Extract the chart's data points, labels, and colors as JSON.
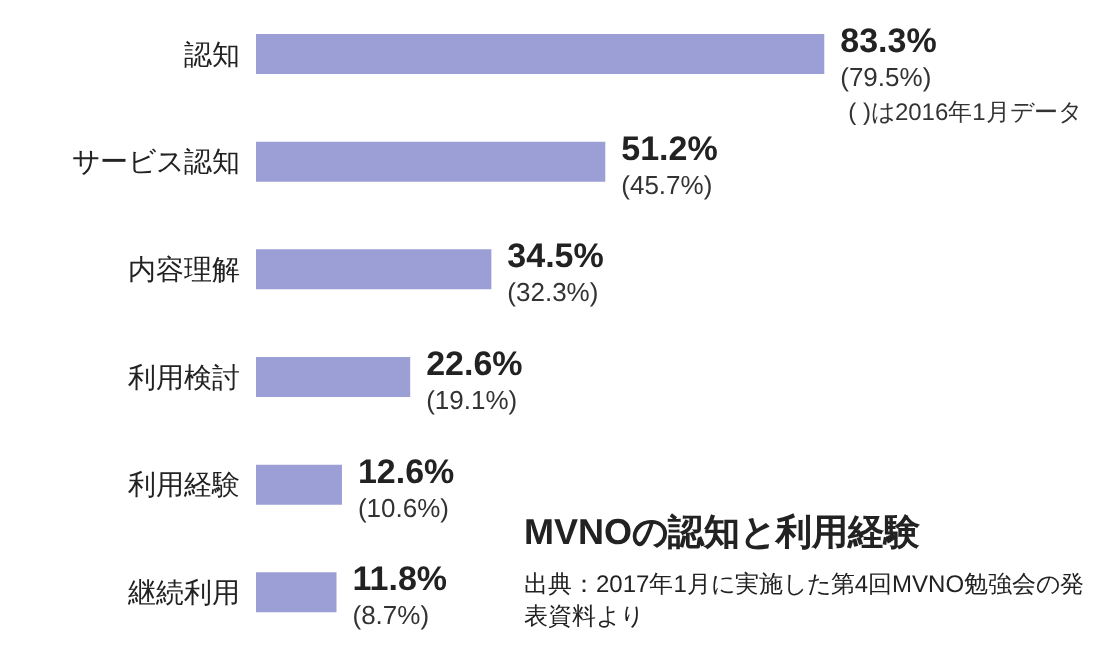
{
  "chart_data": {
    "type": "bar",
    "orientation": "horizontal",
    "title": "MVNOの認知と利用経験",
    "categories": [
      "認知",
      "サービス認知",
      "内容理解",
      "利用検討",
      "利用経験",
      "継続利用"
    ],
    "values": [
      83.3,
      51.2,
      34.5,
      22.6,
      12.6,
      11.8
    ],
    "value_labels": [
      "83.3%",
      "51.2%",
      "34.5%",
      "22.6%",
      "12.6%",
      "11.8%"
    ],
    "color": "#9c9fd6",
    "grid": false,
    "tick_labels": "y",
    "annotations": [
      "(79.5%)",
      "(45.7%)",
      "(32.3%)",
      "(19.1%)",
      "(10.6%)",
      "(8.7%)",
      "( )は2016年1月データ",
      "出典：2017年1月に実施した第4回MVNO勉強会の発表資料より"
    ]
  }
}
